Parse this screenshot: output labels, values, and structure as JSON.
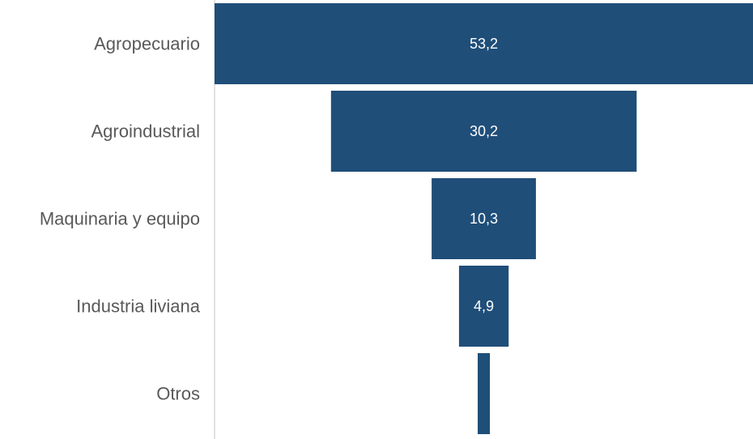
{
  "chart_data": {
    "type": "bar",
    "subtype": "funnel",
    "title": "",
    "xlabel": "",
    "ylabel": "",
    "categories": [
      "Agropecuario",
      "Agroindustrial",
      "Maquinaria y equipo",
      "Industria liviana",
      "Otros"
    ],
    "values": [
      53.2,
      30.2,
      10.3,
      4.9,
      1.2
    ],
    "data_labels": [
      "53,2",
      "30,2",
      "10,3",
      "4,9",
      ""
    ],
    "bar_color": "#1f4e79",
    "label_color": "#ffffff",
    "category_color": "#595959",
    "axis_color": "#d9d9d9",
    "grid": false,
    "legend": "none"
  }
}
